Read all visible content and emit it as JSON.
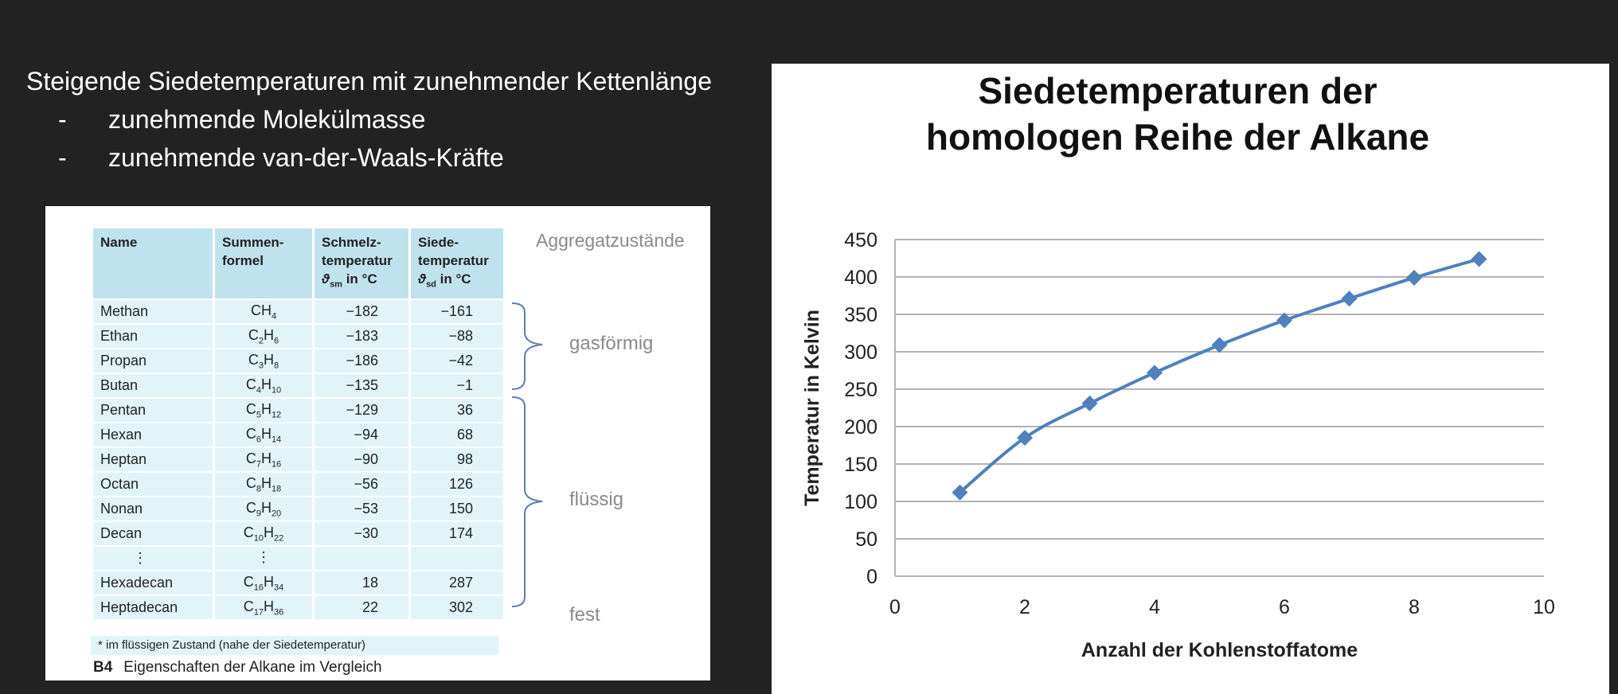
{
  "slide": {
    "heading": "Steigende Siedetemperaturen mit zunehmender Kettenlänge",
    "bullets": [
      {
        "marker": "-",
        "text": "zunehmende Molekülmasse"
      },
      {
        "marker": "-",
        "text": "zunehmende van-der-Waals-Kräfte"
      }
    ]
  },
  "table": {
    "headers": {
      "name": "Name",
      "formula_1": "Summen-",
      "formula_2": "formel",
      "melt_1": "Schmelz-",
      "melt_2": "temperatur",
      "melt_sym": "ϑ",
      "melt_sub": "sm",
      "melt_unit": " in °C",
      "boil_1": "Siede-",
      "boil_2": "temperatur",
      "boil_sym": "ϑ",
      "boil_sub": "sd",
      "boil_unit": " in °C"
    },
    "rows": [
      {
        "name": "Methan",
        "c": "C",
        "cn": "",
        "h": "H",
        "hn": "4",
        "melt": "−182",
        "boil": "−161"
      },
      {
        "name": "Ethan",
        "c": "C",
        "cn": "2",
        "h": "H",
        "hn": "6",
        "melt": "−183",
        "boil": "−88"
      },
      {
        "name": "Propan",
        "c": "C",
        "cn": "3",
        "h": "H",
        "hn": "8",
        "melt": "−186",
        "boil": "−42"
      },
      {
        "name": "Butan",
        "c": "C",
        "cn": "4",
        "h": "H",
        "hn": "10",
        "melt": "−135",
        "boil": "−1"
      },
      {
        "name": "Pentan",
        "c": "C",
        "cn": "5",
        "h": "H",
        "hn": "12",
        "melt": "−129",
        "boil": "36"
      },
      {
        "name": "Hexan",
        "c": "C",
        "cn": "6",
        "h": "H",
        "hn": "14",
        "melt": "−94",
        "boil": "68"
      },
      {
        "name": "Heptan",
        "c": "C",
        "cn": "7",
        "h": "H",
        "hn": "16",
        "melt": "−90",
        "boil": "98"
      },
      {
        "name": "Octan",
        "c": "C",
        "cn": "8",
        "h": "H",
        "hn": "18",
        "melt": "−56",
        "boil": "126"
      },
      {
        "name": "Nonan",
        "c": "C",
        "cn": "9",
        "h": "H",
        "hn": "20",
        "melt": "−53",
        "boil": "150"
      },
      {
        "name": "Decan",
        "c": "C",
        "cn": "10",
        "h": "H",
        "hn": "22",
        "melt": "−30",
        "boil": "174"
      },
      {
        "name": "⋮",
        "c": "⋮",
        "cn": "",
        "h": "",
        "hn": "",
        "melt": "",
        "boil": ""
      },
      {
        "name": "Hexadecan",
        "c": "C",
        "cn": "16",
        "h": "H",
        "hn": "34",
        "melt": "18",
        "boil": "287"
      },
      {
        "name": "Heptadecan",
        "c": "C",
        "cn": "17",
        "h": "H",
        "hn": "36",
        "melt": "22",
        "boil": "302"
      }
    ],
    "footnote": "* im flüssigen Zustand (nahe der Siedetemperatur)",
    "caption_label": "B4",
    "caption_text": "Eigenschaften der Alkane im Vergleich",
    "states_heading": "Aggregatzustände",
    "states": {
      "gas": "gasförmig",
      "liquid": "flüssig",
      "solid": "fest"
    },
    "colors": {
      "header": "#bfe3ec",
      "cell": "#e2f4f8",
      "bracket": "#5a7fb5"
    }
  },
  "chart_data": {
    "type": "line",
    "title_line1": "Siedetemperaturen der",
    "title_line2": "homologen Reihe der Alkane",
    "xlabel": "Anzahl der Kohlenstoffatome",
    "ylabel": "Temperatur in Kelvin",
    "x": [
      1,
      2,
      3,
      4,
      5,
      6,
      7,
      8,
      9
    ],
    "y": [
      112,
      185,
      231,
      272,
      309,
      342,
      371,
      399,
      424
    ],
    "xlim": [
      0,
      10
    ],
    "ylim": [
      0,
      450
    ],
    "xticks": [
      0,
      2,
      4,
      6,
      8,
      10
    ],
    "yticks": [
      0,
      50,
      100,
      150,
      200,
      250,
      300,
      350,
      400,
      450
    ],
    "grid": "horizontal",
    "marker": "diamond",
    "color": "#4f81bd"
  }
}
